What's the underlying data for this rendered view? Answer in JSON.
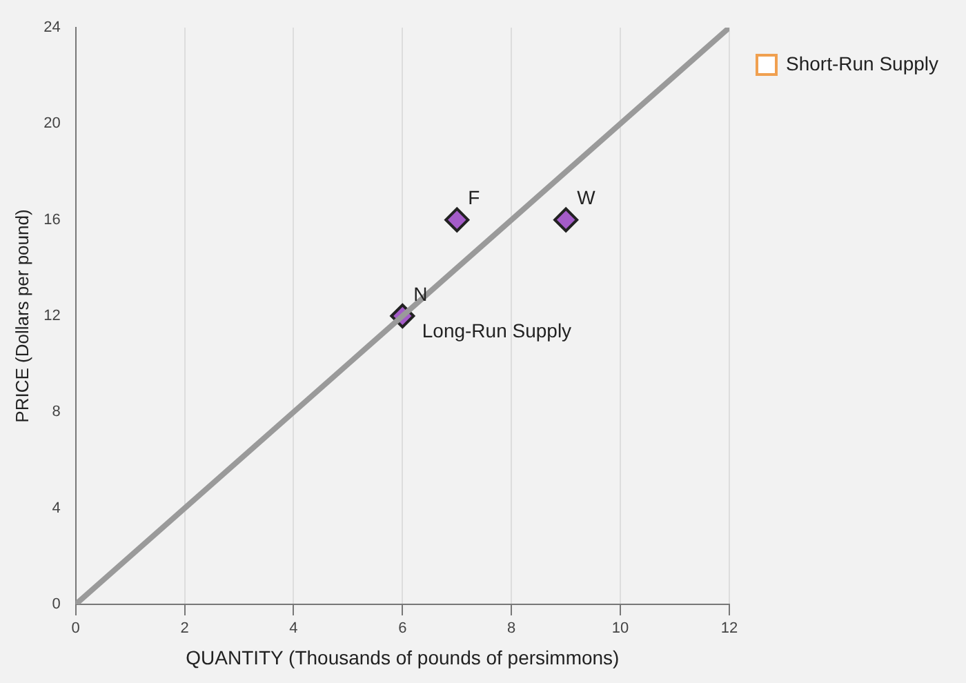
{
  "chart_data": {
    "type": "scatter",
    "xlabel": "QUANTITY (Thousands of pounds of persimmons)",
    "ylabel": "PRICE (Dollars per pound)",
    "xlim": [
      0,
      12
    ],
    "xticks": [
      0,
      2,
      4,
      6,
      8,
      10,
      12
    ],
    "ylim": [
      0,
      24
    ],
    "yticks": [
      0,
      4,
      8,
      12,
      16,
      20,
      24
    ],
    "grid": "x",
    "legend": "right",
    "series": [
      {
        "type": "line",
        "color": "#9a9a9a",
        "x": [
          0,
          12
        ],
        "values": [
          0,
          24
        ],
        "marker": "none"
      },
      {
        "color": "#a45cc8",
        "x": [
          6,
          7,
          9
        ],
        "values": [
          12,
          16,
          16
        ],
        "marker": "diamond"
      },
      {
        "type": "line",
        "name": "Short-Run Supply",
        "color": "#f0a050",
        "marker": "square"
      }
    ],
    "annotations": [
      {
        "text": "N",
        "x": 6,
        "y": 12
      },
      {
        "text": "F",
        "x": 7,
        "y": 16
      },
      {
        "text": "W",
        "x": 9,
        "y": 16
      },
      "Long-Run Supply"
    ]
  }
}
